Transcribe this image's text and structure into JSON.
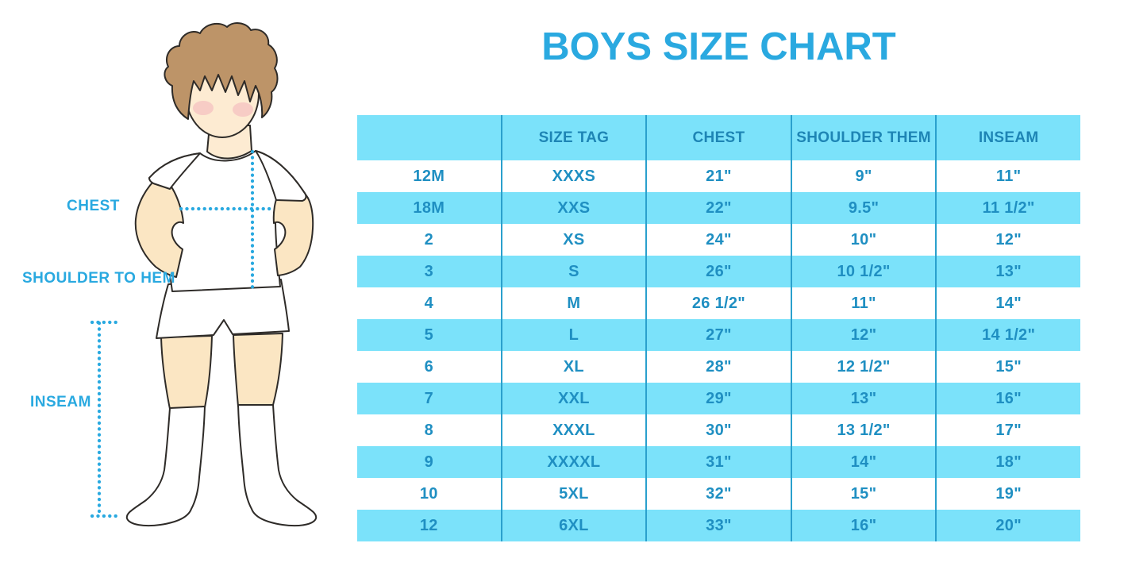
{
  "title": "BOYS SIZE CHART",
  "figure": {
    "illustration": "boy-with-hands-on-hips",
    "labels": {
      "chest": "CHEST",
      "shoulder_to_hem": "SHOULDER TO HEM",
      "inseam": "INSEAM"
    }
  },
  "colors": {
    "accent_blue": "#29A9E0",
    "row_highlight": "#7BE2FA",
    "table_text": "#1F8FC2",
    "divider": "#2AA0CD",
    "hair": "#BD9468",
    "skin": "#FBE6C3"
  },
  "table": {
    "headers": [
      "",
      "SIZE TAG",
      "CHEST",
      "SHOULDER THEM",
      "INSEAM"
    ],
    "rows": [
      {
        "cells": [
          "12M",
          "XXXS",
          "21\"",
          "9\"",
          "11\""
        ]
      },
      {
        "cells": [
          "18M",
          "XXS",
          "22\"",
          "9.5\"",
          "11 1/2\""
        ]
      },
      {
        "cells": [
          "2",
          "XS",
          "24\"",
          "10\"",
          "12\""
        ]
      },
      {
        "cells": [
          "3",
          "S",
          "26\"",
          "10 1/2\"",
          "13\""
        ]
      },
      {
        "cells": [
          "4",
          "M",
          "26 1/2\"",
          "11\"",
          "14\""
        ]
      },
      {
        "cells": [
          "5",
          "L",
          "27\"",
          "12\"",
          "14 1/2\""
        ]
      },
      {
        "cells": [
          "6",
          "XL",
          "28\"",
          "12 1/2\"",
          "15\""
        ]
      },
      {
        "cells": [
          "7",
          "XXL",
          "29\"",
          "13\"",
          "16\""
        ]
      },
      {
        "cells": [
          "8",
          "XXXL",
          "30\"",
          "13 1/2\"",
          "17\""
        ]
      },
      {
        "cells": [
          "9",
          "XXXXL",
          "31\"",
          "14\"",
          "18\""
        ]
      },
      {
        "cells": [
          "10",
          "5XL",
          "32\"",
          "15\"",
          "19\""
        ]
      },
      {
        "cells": [
          "12",
          "6XL",
          "33\"",
          "16\"",
          "20\""
        ]
      }
    ]
  }
}
